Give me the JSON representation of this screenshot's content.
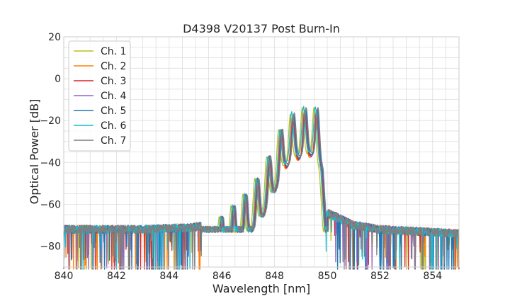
{
  "chart_data": {
    "type": "line",
    "title": "D4398 V20137 Post Burn-In",
    "xlabel": "Wavelength [nm]",
    "ylabel": "Optical Power [dB]",
    "xlim": [
      840,
      855
    ],
    "ylim": [
      -90,
      20
    ],
    "xticks": [
      840,
      842,
      844,
      846,
      848,
      850,
      852,
      854
    ],
    "yticks": [
      -80,
      -60,
      -40,
      -20,
      0,
      20
    ],
    "xtick_labels": [
      "840",
      "842",
      "844",
      "846",
      "848",
      "850",
      "852",
      "854"
    ],
    "ytick_labels": [
      "−80",
      "−60",
      "−40",
      "−20",
      "0",
      "20"
    ],
    "grid": true,
    "legend_position": "top-left",
    "noise_floor": -72,
    "series": [
      {
        "name": "Ch. 1",
        "color": "#bcbd22",
        "shift": -0.1,
        "peak_offset": 0.0
      },
      {
        "name": "Ch. 2",
        "color": "#ff7f0e",
        "shift": -0.02,
        "peak_offset": -1.5
      },
      {
        "name": "Ch. 3",
        "color": "#d62728",
        "shift": 0.0,
        "peak_offset": -1.0
      },
      {
        "name": "Ch. 4",
        "color": "#9467bd",
        "shift": 0.02,
        "peak_offset": -0.5
      },
      {
        "name": "Ch. 5",
        "color": "#1f77b4",
        "shift": 0.03,
        "peak_offset": -0.5
      },
      {
        "name": "Ch. 6",
        "color": "#17becf",
        "shift": -0.05,
        "peak_offset": 1.0
      },
      {
        "name": "Ch. 7",
        "color": "#7f7f7f",
        "shift": 0.05,
        "peak_offset": 0.5
      }
    ],
    "envelope": {
      "x": [
        840.0,
        843.0,
        845.0,
        845.5,
        846.0,
        846.5,
        847.0,
        847.5,
        848.0,
        848.4,
        848.8,
        849.2,
        849.6,
        849.8,
        850.0,
        851.0,
        852.0,
        855.0
      ],
      "y": [
        -72,
        -72,
        -71,
        -69,
        -66,
        -60,
        -54,
        -45,
        -32,
        -20,
        -16,
        -14,
        -14,
        -22,
        -64,
        -70,
        -72,
        -74
      ]
    },
    "modes": [
      846.0,
      846.45,
      846.9,
      847.35,
      847.8,
      848.25,
      848.7,
      849.15,
      849.6
    ]
  }
}
